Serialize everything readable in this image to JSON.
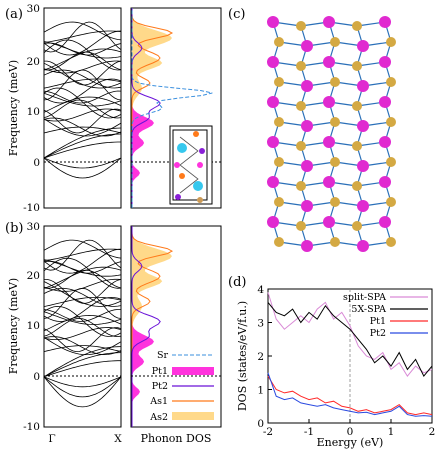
{
  "panels": {
    "a": "(a)",
    "b": "(b)",
    "c": "(c)",
    "d": "(d)"
  },
  "phonon": {
    "ylabel": "Frequency (meV)",
    "yticks": [
      "-10",
      "0",
      "10",
      "20",
      "30"
    ],
    "xtick_gamma": "Γ",
    "xtick_x": "X",
    "dos_xlabel": "Phonon DOS",
    "legend": [
      "Sr",
      "Pt1",
      "Pt2",
      "As1",
      "As2"
    ],
    "colors": {
      "Sr": "#3a8fde",
      "Pt1": "#ff33dd",
      "Pt2": "#6a12d8",
      "As1": "#ff7a1a",
      "As2": "#ffd98a"
    }
  },
  "dos_chart": {
    "xlabel": "Energy (eV)",
    "ylabel": "DOS (states/eV/f.u.)",
    "xticks": [
      "-2",
      "-1",
      "0",
      "1",
      "2"
    ],
    "yticks": [
      "0",
      "1",
      "2",
      "3",
      "4"
    ],
    "legend": [
      "split-SPA",
      "5X-SPA",
      "Pt1",
      "Pt2"
    ]
  },
  "chart_data": [
    {
      "type": "line",
      "panel": "(d)",
      "xlabel": "Energy (eV)",
      "ylabel": "DOS (states/eV/f.u.)",
      "xlim": [
        -2,
        2
      ],
      "ylim": [
        0,
        4
      ],
      "series": [
        {
          "name": "split-SPA",
          "color": "#d98ad6",
          "x": [
            -2.0,
            -1.8,
            -1.6,
            -1.4,
            -1.2,
            -1.0,
            -0.8,
            -0.6,
            -0.4,
            -0.2,
            0.0,
            0.2,
            0.4,
            0.6,
            0.8,
            1.0,
            1.2,
            1.4,
            1.6,
            1.8,
            2.0
          ],
          "y": [
            3.9,
            3.1,
            2.8,
            3.0,
            3.2,
            3.0,
            3.4,
            3.6,
            3.1,
            3.3,
            2.9,
            2.3,
            2.0,
            1.9,
            2.1,
            1.6,
            1.8,
            1.4,
            1.7,
            1.5,
            1.6
          ]
        },
        {
          "name": "5X-SPA",
          "color": "#000000",
          "x": [
            -2.0,
            -1.8,
            -1.6,
            -1.4,
            -1.2,
            -1.0,
            -0.8,
            -0.6,
            -0.4,
            -0.2,
            0.0,
            0.2,
            0.4,
            0.6,
            0.8,
            1.0,
            1.2,
            1.4,
            1.6,
            1.8,
            2.0
          ],
          "y": [
            3.6,
            3.3,
            3.2,
            3.4,
            3.0,
            3.3,
            3.1,
            3.5,
            3.2,
            3.0,
            2.8,
            2.5,
            2.2,
            1.8,
            2.0,
            1.7,
            2.1,
            1.6,
            1.9,
            1.4,
            1.7
          ]
        },
        {
          "name": "Pt1",
          "color": "#ff2a2a",
          "x": [
            -2.0,
            -1.8,
            -1.6,
            -1.4,
            -1.2,
            -1.0,
            -0.8,
            -0.6,
            -0.4,
            -0.2,
            0.0,
            0.2,
            0.4,
            0.6,
            0.8,
            1.0,
            1.2,
            1.4,
            1.6,
            1.8,
            2.0
          ],
          "y": [
            1.4,
            1.0,
            0.9,
            0.95,
            0.8,
            0.7,
            0.75,
            0.6,
            0.65,
            0.5,
            0.45,
            0.35,
            0.4,
            0.3,
            0.35,
            0.4,
            0.55,
            0.3,
            0.25,
            0.3,
            0.25
          ]
        },
        {
          "name": "Pt2",
          "color": "#2a4ae0",
          "x": [
            -2.0,
            -1.8,
            -1.6,
            -1.4,
            -1.2,
            -1.0,
            -0.8,
            -0.6,
            -0.4,
            -0.2,
            0.0,
            0.2,
            0.4,
            0.6,
            0.8,
            1.0,
            1.2,
            1.4,
            1.6,
            1.8,
            2.0
          ],
          "y": [
            1.5,
            0.8,
            0.7,
            0.75,
            0.6,
            0.55,
            0.5,
            0.55,
            0.45,
            0.4,
            0.35,
            0.3,
            0.32,
            0.25,
            0.3,
            0.35,
            0.5,
            0.25,
            0.2,
            0.22,
            0.2
          ]
        }
      ]
    }
  ]
}
